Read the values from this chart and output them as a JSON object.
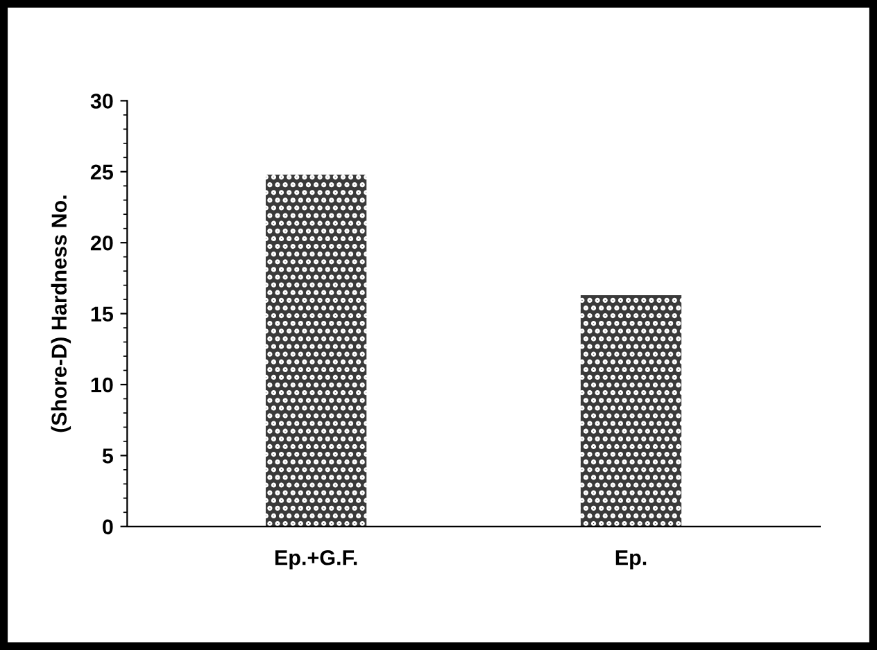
{
  "chart_data": {
    "type": "bar",
    "ylabel": "(Shore-D) Hardness No.",
    "categories": [
      "Ep.+G.F.",
      "Ep."
    ],
    "values": [
      24.8,
      16.3
    ],
    "color": "#3a3a3a",
    "ylim": [
      0,
      30
    ],
    "yticks": [
      0,
      5,
      10,
      15,
      20,
      25,
      30
    ],
    "grid": false,
    "legend": false
  }
}
